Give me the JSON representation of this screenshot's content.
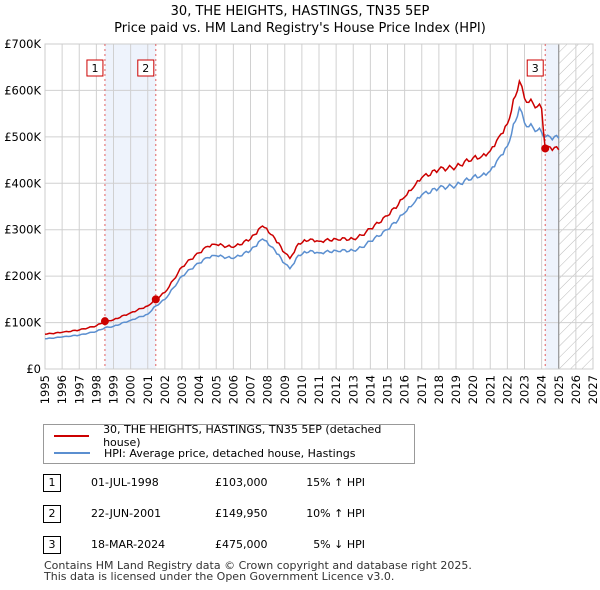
{
  "chart_data": {
    "type": "line",
    "title": "30, THE HEIGHTS, HASTINGS, TN35 5EP",
    "subtitle": "Price paid vs. HM Land Registry's House Price Index (HPI)",
    "y_ticks": [
      "£0",
      "£100K",
      "£200K",
      "£300K",
      "£400K",
      "£500K",
      "£600K",
      "£700K"
    ],
    "ylim": [
      0,
      700000
    ],
    "xlim": [
      1995,
      2027
    ],
    "x_ticks": [
      "1995",
      "1996",
      "1997",
      "1998",
      "1999",
      "2000",
      "2001",
      "2002",
      "2003",
      "2004",
      "2005",
      "2006",
      "2007",
      "2008",
      "2009",
      "2010",
      "2011",
      "2012",
      "2013",
      "2014",
      "2015",
      "2016",
      "2017",
      "2018",
      "2019",
      "2020",
      "2021",
      "2022",
      "2023",
      "2024",
      "2025",
      "2026",
      "2027"
    ],
    "grid": true,
    "forecast_from": 2025,
    "series": [
      {
        "name": "30, THE HEIGHTS, HASTINGS, TN35 5EP (detached house)",
        "color": "#cc0000",
        "x": [
          1995,
          1996,
          1997,
          1998,
          1998.5,
          1999,
          2000,
          2001,
          2001.47,
          2002,
          2002.5,
          2003,
          2003.5,
          2004,
          2004.5,
          2005,
          2006,
          2007,
          2007.7,
          2008.3,
          2009,
          2009.3,
          2009.8,
          2010.5,
          2011,
          2012,
          2013,
          2013.5,
          2014,
          2015,
          2016,
          2016.5,
          2017,
          2018,
          2019,
          2020,
          2020.5,
          2021,
          2021.5,
          2022,
          2022.7,
          2023,
          2023.5,
          2024,
          2024.21,
          2024.5,
          2025
        ],
        "y": [
          75000,
          79000,
          84000,
          93000,
          103000,
          106000,
          121000,
          136000,
          149950,
          165000,
          192000,
          220000,
          236000,
          250000,
          264000,
          268000,
          262000,
          280000,
          308000,
          288000,
          250000,
          238000,
          270000,
          280000,
          275000,
          280000,
          280000,
          288000,
          302000,
          330000,
          370000,
          390000,
          412000,
          430000,
          435000,
          455000,
          458000,
          470000,
          500000,
          528000,
          620000,
          583000,
          572000,
          561000,
          475000,
          478000,
          472000
        ]
      },
      {
        "name": "HPI: Average price, detached house, Hastings",
        "color": "#5b8fd0",
        "x": [
          1995,
          1996,
          1997,
          1998,
          1998.5,
          1999,
          2000,
          2001,
          2001.47,
          2002,
          2002.5,
          2003,
          2003.5,
          2004,
          2004.5,
          2005,
          2006,
          2007,
          2007.7,
          2008.3,
          2009,
          2009.3,
          2009.8,
          2010.5,
          2011,
          2012,
          2013,
          2013.5,
          2014,
          2015,
          2016,
          2016.5,
          2017,
          2018,
          2019,
          2020,
          2020.5,
          2021,
          2021.5,
          2022,
          2022.7,
          2023,
          2023.5,
          2024,
          2024.21,
          2024.5,
          2025
        ],
        "y": [
          65000,
          69000,
          73000,
          81000,
          89000,
          92000,
          105000,
          118000,
          136000,
          150000,
          175000,
          200000,
          215000,
          228000,
          240000,
          244000,
          238000,
          255000,
          280000,
          262000,
          227000,
          216000,
          245000,
          255000,
          250000,
          255000,
          255000,
          262000,
          275000,
          300000,
          336000,
          355000,
          375000,
          390000,
          395000,
          414000,
          417000,
          427000,
          455000,
          480000,
          563000,
          530000,
          520000,
          510000,
          500000,
          500000,
          497000
        ]
      }
    ],
    "sales": [
      {
        "label": "1",
        "x": 1998.5,
        "y": 103000
      },
      {
        "label": "2",
        "x": 2001.47,
        "y": 149950
      },
      {
        "label": "3",
        "x": 2024.21,
        "y": 475000
      }
    ]
  },
  "legend": {
    "red": "30, THE HEIGHTS, HASTINGS, TN35 5EP (detached house)",
    "blue": "HPI: Average price, detached house, Hastings"
  },
  "transactions": [
    {
      "num": "1",
      "date": "01-JUL-1998",
      "price": "£103,000",
      "hpi": "15% ↑ HPI"
    },
    {
      "num": "2",
      "date": "22-JUN-2001",
      "price": "£149,950",
      "hpi": "10% ↑ HPI"
    },
    {
      "num": "3",
      "date": "18-MAR-2024",
      "price": "£475,000",
      "hpi": "5% ↓ HPI"
    }
  ],
  "footer": {
    "line1": "Contains HM Land Registry data © Crown copyright and database right 2025.",
    "line2": "This data is licensed under the Open Government Licence v3.0."
  }
}
